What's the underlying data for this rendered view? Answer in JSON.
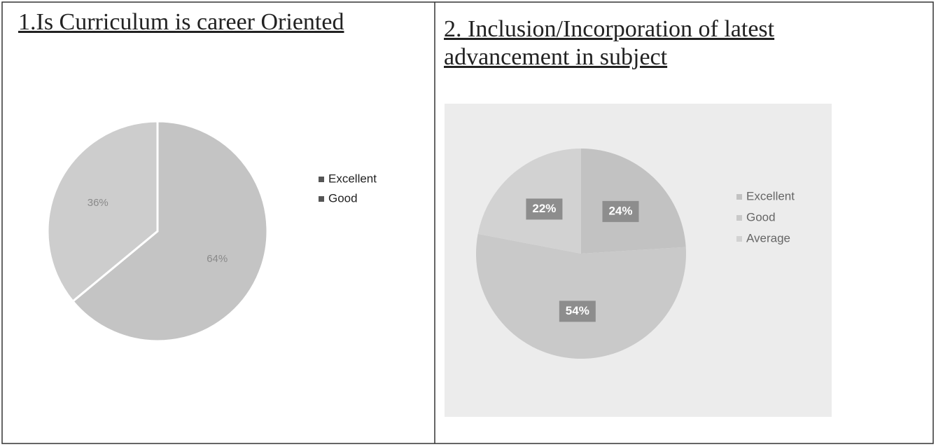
{
  "chart_data": [
    {
      "type": "pie",
      "title": "1.Is Curriculum is career Oriented",
      "categories": [
        "Excellent",
        "Good"
      ],
      "values": [
        64,
        36
      ],
      "value_labels": [
        "64%",
        "36%"
      ],
      "colors": [
        "#c4c4c4",
        "#cdcdcd"
      ],
      "legend": "right"
    },
    {
      "type": "pie",
      "title": "2. Inclusion/Incorporation of latest advancement in subject",
      "categories": [
        "Excellent",
        "Good",
        "Average"
      ],
      "values": [
        24,
        54,
        22
      ],
      "value_labels": [
        "24%",
        "54%",
        "22%"
      ],
      "colors": [
        "#c2c2c2",
        "#c9c9c9",
        "#d2d2d2"
      ],
      "legend": "right"
    }
  ]
}
